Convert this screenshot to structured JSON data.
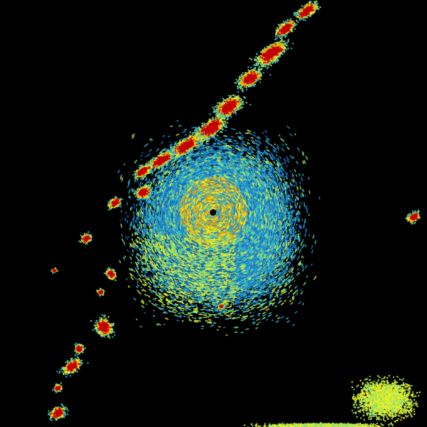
{
  "radar": {
    "palette": {
      "background": "#000000",
      "deep_blue": "#0a5fb4",
      "blue": "#1e8cd2",
      "cyan": "#3cc0c8",
      "green": "#8ce07a",
      "yellow": "#f0f01e",
      "orange": "#f0a000",
      "red": "#c40000",
      "dark_red": "#a00000"
    },
    "site_marker": "radar-site-dot"
  }
}
